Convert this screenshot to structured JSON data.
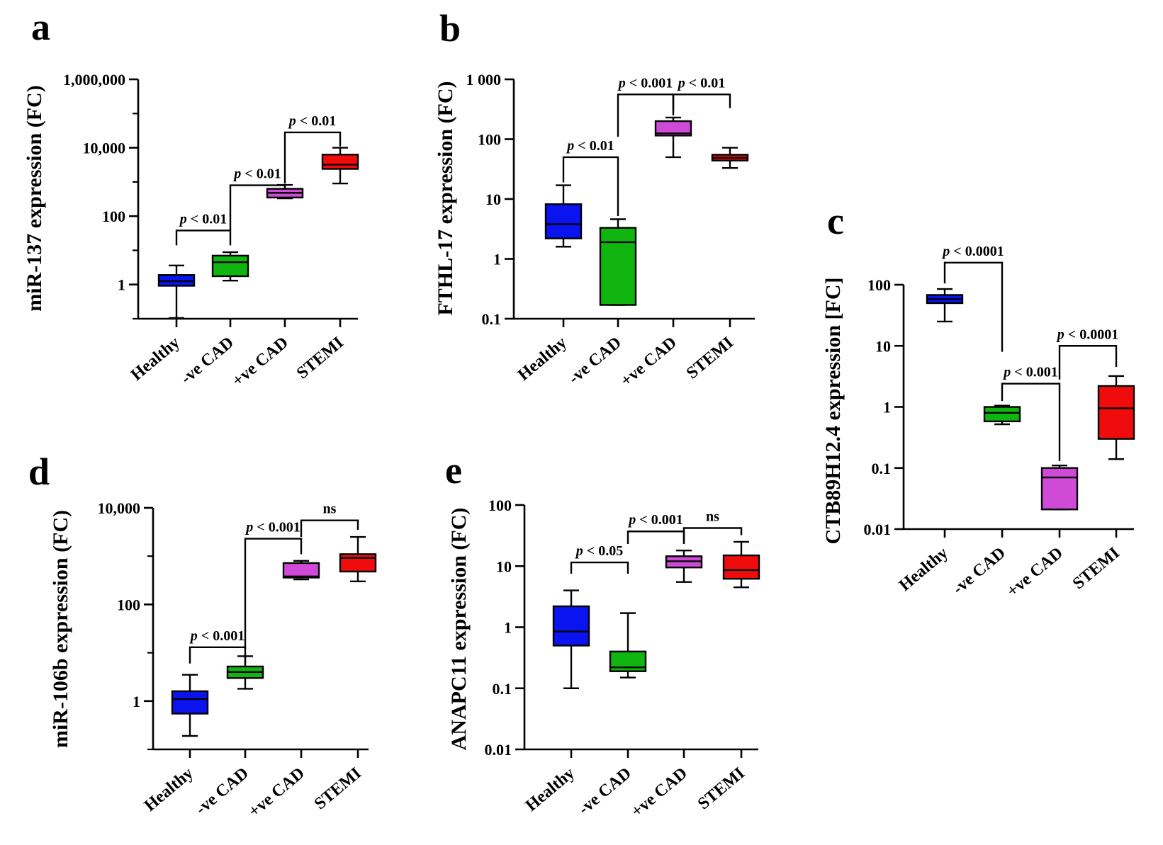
{
  "figure": {
    "categories": [
      "Healthy",
      "-ve CAD",
      "+ve CAD",
      "STEMI"
    ],
    "colors": [
      "#0a14f0",
      "#10b510",
      "#d04ad8",
      "#f00c0c"
    ]
  },
  "chart_data": [
    {
      "panel": "a",
      "type": "box",
      "ylabel": "miR-137 expression (FC)",
      "yscale": "log",
      "ylim": [
        0.1,
        1000000
      ],
      "yticks": [
        {
          "v": 1,
          "label": "1"
        },
        {
          "v": 100,
          "label": "100"
        },
        {
          "v": 10000,
          "label": "10,000"
        },
        {
          "v": 1000000,
          "label": "1,000,000"
        }
      ],
      "boxes": [
        {
          "category": "Healthy",
          "min": 0.105,
          "q1": 0.92,
          "median": 1.25,
          "q3": 1.9,
          "max": 3.6
        },
        {
          "category": "-ve CAD",
          "min": 1.3,
          "q1": 1.75,
          "median": 4.5,
          "q3": 7.0,
          "max": 8.8
        },
        {
          "category": "+ve CAD",
          "min": 330,
          "q1": 350,
          "median": 480,
          "q3": 630,
          "max": 820
        },
        {
          "category": "STEMI",
          "min": 900,
          "q1": 2400,
          "median": 3200,
          "q3": 6300,
          "max": 10000
        }
      ],
      "comparisons": [
        {
          "from": 0,
          "to": 1,
          "label": "< 0.01",
          "level": 38,
          "left_end": 14,
          "right_end": 14
        },
        {
          "from": 1,
          "to": 2,
          "label": "< 0.01",
          "level": 800,
          "left_end": 38,
          "right_end": 650
        },
        {
          "from": 2,
          "to": 3,
          "label": "< 0.01",
          "level": 28000,
          "left_end": 900,
          "right_end": 11000
        }
      ]
    },
    {
      "panel": "b",
      "type": "box",
      "ylabel": "FTHL-17 expression (FC)",
      "yscale": "log",
      "ylim": [
        0.1,
        1000
      ],
      "yticks": [
        {
          "v": 0.1,
          "label": "0.1"
        },
        {
          "v": 1,
          "label": "1"
        },
        {
          "v": 10,
          "label": "10"
        },
        {
          "v": 100,
          "label": "100"
        },
        {
          "v": 1000,
          "label": "1 000"
        }
      ],
      "boxes": [
        {
          "category": "Healthy",
          "min": 1.6,
          "q1": 2.2,
          "median": 3.8,
          "q3": 8.2,
          "max": 17
        },
        {
          "category": "-ve CAD",
          "min": 0.17,
          "q1": 0.17,
          "median": 1.9,
          "q3": 3.3,
          "max": 4.6
        },
        {
          "category": "+ve CAD",
          "min": 50,
          "q1": 115,
          "median": 125,
          "q3": 200,
          "max": 230
        },
        {
          "category": "STEMI",
          "min": 33,
          "q1": 44,
          "median": 49,
          "q3": 55,
          "max": 72
        }
      ],
      "comparisons": [
        {
          "from": 0,
          "to": 1,
          "label": "< 0.01",
          "level": 50,
          "left_end": 19,
          "right_end": 5.2
        },
        {
          "from": 1,
          "to": 2,
          "label": "< 0.001",
          "level": 560,
          "left_end": 110,
          "right_end": 250
        },
        {
          "from": 2,
          "to": 3,
          "label": "< 0.01",
          "level": 560,
          "left_end": 300,
          "right_end": 330
        }
      ]
    },
    {
      "panel": "c",
      "type": "box",
      "ylabel": "CTB89H12.4 expression [FC]",
      "yscale": "log",
      "ylim": [
        0.01,
        100
      ],
      "yticks": [
        {
          "v": 0.01,
          "label": "0.01"
        },
        {
          "v": 0.1,
          "label": "0.1"
        },
        {
          "v": 1,
          "label": "1"
        },
        {
          "v": 10,
          "label": "10"
        },
        {
          "v": 100,
          "label": "100"
        }
      ],
      "boxes": [
        {
          "category": "Healthy",
          "min": 25,
          "q1": 50,
          "median": 58,
          "q3": 68,
          "max": 85
        },
        {
          "category": "-ve CAD",
          "min": 0.52,
          "q1": 0.58,
          "median": 0.8,
          "q3": 1.0,
          "max": 1.05
        },
        {
          "category": "+ve CAD",
          "min": 0.021,
          "q1": 0.021,
          "median": 0.07,
          "q3": 0.1,
          "max": 0.11
        },
        {
          "category": "STEMI",
          "min": 0.14,
          "q1": 0.3,
          "median": 0.95,
          "q3": 2.2,
          "max": 3.2
        }
      ],
      "comparisons": [
        {
          "from": 0,
          "to": 1,
          "label": "< 0.0001",
          "level": 230,
          "left_end": 105,
          "right_end": 8
        },
        {
          "from": 1,
          "to": 2,
          "label": "< 0.001",
          "level": 2.4,
          "left_end": 1.25,
          "right_end": 0.13
        },
        {
          "from": 2,
          "to": 3,
          "label": "< 0.0001",
          "level": 10,
          "left_end": 2.8,
          "right_end": 4.5
        }
      ]
    },
    {
      "panel": "d",
      "type": "box",
      "ylabel": "miR-106b expression (FC)",
      "yscale": "log",
      "ylim": [
        0.1,
        10000
      ],
      "yticks": [
        {
          "v": 1,
          "label": "1"
        },
        {
          "v": 100,
          "label": "100"
        },
        {
          "v": 10000,
          "label": "10,000"
        }
      ],
      "boxes": [
        {
          "category": "Healthy",
          "min": 0.19,
          "q1": 0.55,
          "median": 1.1,
          "q3": 1.6,
          "max": 3.5
        },
        {
          "category": "-ve CAD",
          "min": 1.8,
          "q1": 3.0,
          "median": 4.0,
          "q3": 5.2,
          "max": 8.5
        },
        {
          "category": "+ve CAD",
          "min": 330,
          "q1": 360,
          "median": 380,
          "q3": 720,
          "max": 800
        },
        {
          "category": "STEMI",
          "min": 300,
          "q1": 480,
          "median": 920,
          "q3": 1100,
          "max": 2500
        }
      ],
      "comparisons": [
        {
          "from": 0,
          "to": 1,
          "label": "< 0.001",
          "level": 13,
          "left_end": 6,
          "right_end": 6
        },
        {
          "from": 1,
          "to": 2,
          "label": "< 0.001",
          "level": 2300,
          "left_end": 12,
          "right_end": 1100
        },
        {
          "from": 2,
          "to": 3,
          "label": "ns",
          "level": 5500,
          "left_end": 2500,
          "right_end": 3500
        }
      ]
    },
    {
      "panel": "e",
      "type": "box",
      "ylabel": "ANAPC11 expression (FC)",
      "yscale": "log",
      "ylim": [
        0.01,
        100
      ],
      "yticks": [
        {
          "v": 0.01,
          "label": "0.01"
        },
        {
          "v": 0.1,
          "label": "0.1"
        },
        {
          "v": 1,
          "label": "1"
        },
        {
          "v": 10,
          "label": "10"
        },
        {
          "v": 100,
          "label": "100"
        }
      ],
      "boxes": [
        {
          "category": "Healthy",
          "min": 0.1,
          "q1": 0.5,
          "median": 0.85,
          "q3": 2.2,
          "max": 4.0
        },
        {
          "category": "-ve CAD",
          "min": 0.15,
          "q1": 0.19,
          "median": 0.22,
          "q3": 0.4,
          "max": 1.7
        },
        {
          "category": "+ve CAD",
          "min": 5.5,
          "q1": 9.5,
          "median": 12,
          "q3": 14.5,
          "max": 18
        },
        {
          "category": "STEMI",
          "min": 4.5,
          "q1": 6.2,
          "median": 8.6,
          "q3": 15,
          "max": 25
        }
      ],
      "comparisons": [
        {
          "from": 0,
          "to": 1,
          "label": "< 0.05",
          "level": 11.5,
          "left_end": 7.5,
          "right_end": 7.5
        },
        {
          "from": 1,
          "to": 2,
          "label": "< 0.001",
          "level": 37,
          "left_end": 23,
          "right_end": 23
        },
        {
          "from": 2,
          "to": 3,
          "label": "ns",
          "level": 42,
          "left_end": 24,
          "right_end": 32
        }
      ]
    }
  ]
}
